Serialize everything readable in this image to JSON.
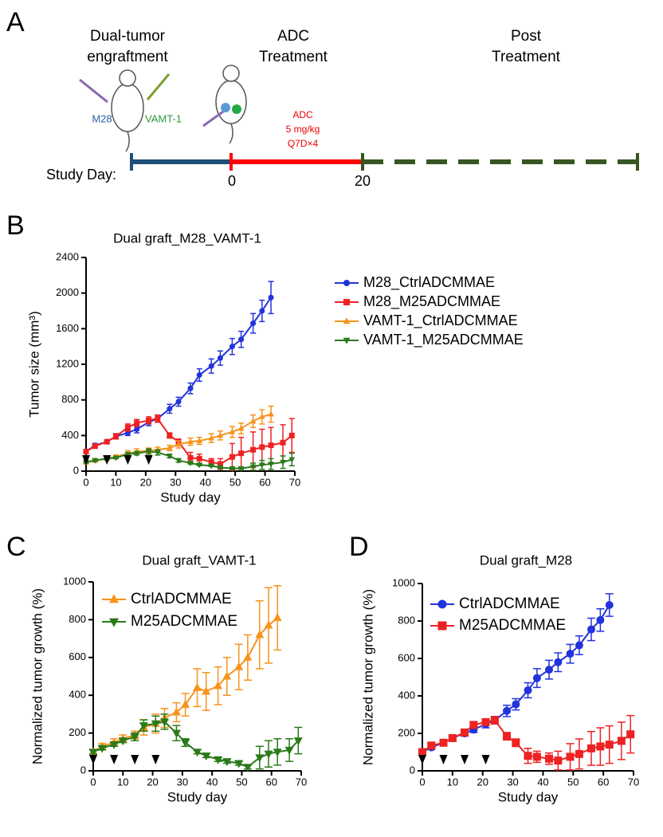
{
  "panel_a": {
    "label": "A",
    "phase_1": [
      "Dual-tumor",
      "engraftment"
    ],
    "phase_2": [
      "ADC",
      "Treatment"
    ],
    "phase_3": [
      "Post",
      "Treatment"
    ],
    "tumor_1": "M28",
    "tumor_2": "VAMT-1",
    "dosing": [
      "ADC",
      "5 mg/kg",
      "Q7D×4"
    ],
    "axis_label": "Study Day:",
    "day_marks": [
      "0",
      "20"
    ]
  },
  "chart_data": [
    {
      "type": "line",
      "panel_label": "B",
      "title": "Dual  graft_M28_VAMT-1",
      "x_label": "Study day",
      "y_label": "Tumor size (mm³)",
      "xlim": [
        0,
        70
      ],
      "xticks": [
        0,
        10,
        20,
        30,
        40,
        50,
        60,
        70
      ],
      "ylim": [
        0,
        2400
      ],
      "yticks": [
        0,
        400,
        800,
        1200,
        1600,
        2000,
        2400
      ],
      "grid": false,
      "legend": "right",
      "dose_days": [
        0,
        7,
        14,
        21
      ],
      "series": [
        {
          "name": "M28_CtrlADCMMAE",
          "color": "#2233dd",
          "marker": "circle",
          "x": [
            0,
            3,
            7,
            10,
            14,
            17,
            21,
            24,
            28,
            31,
            35,
            38,
            42,
            45,
            49,
            52,
            56,
            59,
            62
          ],
          "values": [
            220,
            290,
            330,
            390,
            430,
            470,
            550,
            590,
            700,
            780,
            930,
            1080,
            1180,
            1270,
            1400,
            1480,
            1660,
            1800,
            1950
          ],
          "errors": [
            20,
            20,
            20,
            30,
            30,
            40,
            40,
            40,
            50,
            50,
            60,
            70,
            80,
            80,
            90,
            90,
            110,
            120,
            180
          ]
        },
        {
          "name": "M28_M25ADCMMAE",
          "color": "#ee2222",
          "marker": "square",
          "x": [
            0,
            3,
            7,
            10,
            14,
            17,
            21,
            24,
            28,
            31,
            35,
            38,
            42,
            45,
            49,
            52,
            56,
            59,
            62,
            66,
            69
          ],
          "values": [
            220,
            280,
            330,
            390,
            490,
            540,
            570,
            590,
            400,
            330,
            150,
            140,
            100,
            80,
            160,
            200,
            240,
            270,
            290,
            320,
            400
          ],
          "errors": [
            20,
            20,
            20,
            30,
            40,
            40,
            40,
            40,
            30,
            30,
            60,
            50,
            40,
            60,
            150,
            180,
            200,
            200,
            200,
            200,
            190
          ]
        },
        {
          "name": "VAMT-1_CtrlADCMMAE",
          "color": "#f7941d",
          "marker": "triangle-up",
          "x": [
            0,
            3,
            7,
            10,
            14,
            17,
            21,
            24,
            28,
            31,
            35,
            38,
            42,
            45,
            49,
            52,
            56,
            59,
            62
          ],
          "values": [
            100,
            120,
            140,
            160,
            200,
            220,
            230,
            240,
            260,
            300,
            330,
            340,
            370,
            400,
            440,
            480,
            560,
            610,
            640
          ],
          "errors": [
            20,
            20,
            20,
            20,
            30,
            30,
            30,
            30,
            30,
            40,
            40,
            40,
            50,
            50,
            60,
            60,
            70,
            80,
            90
          ]
        },
        {
          "name": "VAMT-1_M25ADCMMAE",
          "color": "#2a7a1a",
          "marker": "triangle-down",
          "x": [
            0,
            3,
            7,
            10,
            14,
            17,
            21,
            24,
            28,
            31,
            35,
            38,
            42,
            45,
            49,
            52,
            56,
            59,
            62,
            66,
            69
          ],
          "values": [
            100,
            120,
            140,
            150,
            190,
            200,
            220,
            210,
            170,
            120,
            90,
            70,
            60,
            40,
            30,
            30,
            50,
            70,
            80,
            100,
            130
          ],
          "errors": [
            10,
            10,
            10,
            10,
            20,
            20,
            30,
            30,
            20,
            20,
            10,
            10,
            10,
            10,
            10,
            10,
            40,
            50,
            60,
            70,
            70
          ]
        }
      ]
    },
    {
      "type": "line",
      "panel_label": "C",
      "title": "Dual graft_VAMT-1",
      "x_label": "Study day",
      "y_label": "Normalized tumor growth (%)",
      "xlim": [
        0,
        70
      ],
      "xticks": [
        0,
        10,
        20,
        30,
        40,
        50,
        60,
        70
      ],
      "ylim": [
        0,
        1000
      ],
      "yticks": [
        0,
        200,
        400,
        600,
        800,
        1000
      ],
      "grid": false,
      "legend": "upper left",
      "dose_days": [
        0,
        7,
        14,
        21
      ],
      "series": [
        {
          "name": "CtrlADCMMAE",
          "color": "#f7941d",
          "marker": "triangle-up",
          "x": [
            0,
            3,
            7,
            10,
            14,
            17,
            21,
            24,
            28,
            31,
            35,
            38,
            42,
            45,
            49,
            52,
            56,
            59,
            62
          ],
          "values": [
            100,
            130,
            150,
            170,
            190,
            230,
            250,
            280,
            310,
            350,
            440,
            420,
            450,
            500,
            550,
            600,
            720,
            770,
            810
          ],
          "errors": [
            10,
            15,
            20,
            20,
            20,
            40,
            50,
            50,
            50,
            60,
            100,
            100,
            100,
            100,
            120,
            120,
            180,
            200,
            170
          ]
        },
        {
          "name": "M25ADCMMAE",
          "color": "#2a7a1a",
          "marker": "triangle-down",
          "x": [
            0,
            3,
            7,
            10,
            14,
            17,
            21,
            24,
            28,
            31,
            35,
            38,
            42,
            45,
            49,
            52,
            56,
            59,
            62,
            66,
            69
          ],
          "values": [
            100,
            120,
            140,
            160,
            180,
            240,
            250,
            260,
            200,
            150,
            100,
            80,
            60,
            50,
            40,
            20,
            70,
            90,
            100,
            110,
            160
          ],
          "errors": [
            10,
            10,
            10,
            10,
            20,
            30,
            40,
            40,
            40,
            20,
            10,
            10,
            10,
            10,
            10,
            10,
            60,
            70,
            70,
            60,
            70
          ]
        }
      ]
    },
    {
      "type": "line",
      "panel_label": "D",
      "title": "Dual graft_M28",
      "x_label": "Study day",
      "y_label": "Normalized tumor growth (%)",
      "xlim": [
        0,
        70
      ],
      "xticks": [
        0,
        10,
        20,
        30,
        40,
        50,
        60,
        70
      ],
      "ylim": [
        0,
        1000
      ],
      "yticks": [
        0,
        200,
        400,
        600,
        800,
        1000
      ],
      "grid": false,
      "legend": "upper left",
      "dose_days": [
        0,
        7,
        14,
        21
      ],
      "series": [
        {
          "name": "CtrlADCMMAE",
          "color": "#2233dd",
          "marker": "circle",
          "x": [
            0,
            3,
            7,
            10,
            14,
            17,
            21,
            24,
            28,
            31,
            35,
            38,
            42,
            45,
            49,
            52,
            56,
            59,
            62
          ],
          "values": [
            100,
            125,
            150,
            175,
            200,
            220,
            250,
            270,
            320,
            355,
            430,
            495,
            540,
            580,
            625,
            670,
            755,
            805,
            885
          ],
          "errors": [
            10,
            10,
            10,
            10,
            15,
            15,
            20,
            20,
            30,
            30,
            40,
            50,
            50,
            50,
            50,
            50,
            60,
            60,
            60
          ]
        },
        {
          "name": "M25ADCMMAE",
          "color": "#ee2222",
          "marker": "square",
          "x": [
            0,
            3,
            7,
            10,
            14,
            17,
            21,
            24,
            28,
            31,
            35,
            38,
            42,
            45,
            49,
            52,
            56,
            59,
            62,
            66,
            69
          ],
          "values": [
            100,
            135,
            150,
            175,
            205,
            245,
            260,
            270,
            185,
            150,
            80,
            75,
            65,
            55,
            75,
            90,
            120,
            130,
            140,
            160,
            195
          ],
          "errors": [
            10,
            10,
            10,
            10,
            15,
            15,
            15,
            20,
            20,
            20,
            40,
            30,
            30,
            50,
            70,
            80,
            90,
            100,
            100,
            100,
            100
          ]
        }
      ]
    }
  ]
}
